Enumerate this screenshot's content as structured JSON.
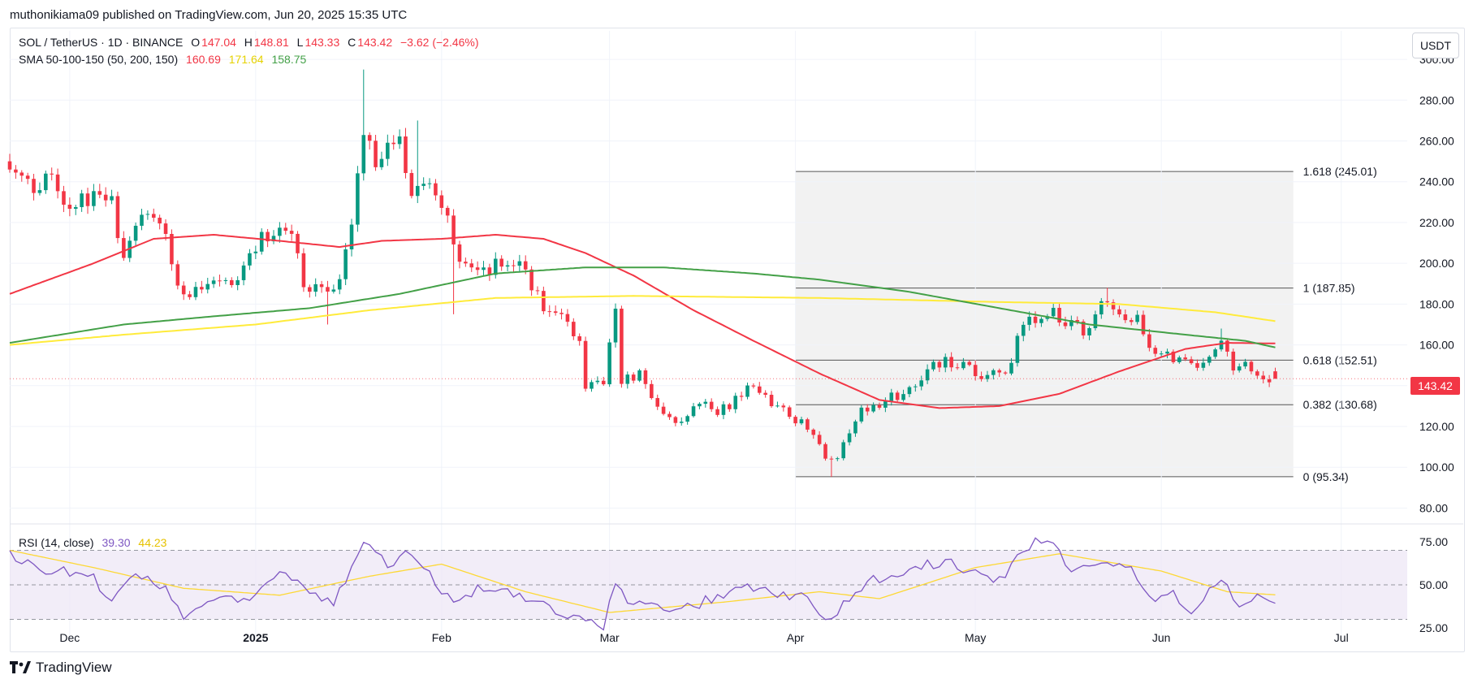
{
  "header": {
    "published": "muthonikiama09 published on TradingView.com, Jun 20, 2025 15:35 UTC"
  },
  "legend": {
    "symbol": "SOL / TetherUS · 1D · BINANCE",
    "ohlc": [
      {
        "label": "O",
        "value": "147.04"
      },
      {
        "label": "H",
        "value": "148.81"
      },
      {
        "label": "L",
        "value": "143.33"
      },
      {
        "label": "C",
        "value": "143.42"
      }
    ],
    "change": "−3.62 (−2.46%)",
    "sma_label": "SMA 50-100-150 (50, 200, 150)",
    "sma_values": [
      "160.69",
      "171.64",
      "158.75"
    ]
  },
  "unit_button": "USDT",
  "last_price_tag": "143.42",
  "rsi_legend": {
    "label": "RSI (14, close)",
    "values": [
      "39.30",
      "44.23"
    ]
  },
  "footer": {
    "logo_text": "TradingView"
  },
  "colors": {
    "up": "#089981",
    "down": "#f23645",
    "sma50": "#f23645",
    "sma200": "#ffeb3b",
    "sma150": "#43a047",
    "rsi": "#7e57c2",
    "rsi_ma": "#fdd835",
    "fib_zone": "#f2f2f2"
  },
  "chart_data": [
    {
      "type": "candlestick",
      "title": "SOL / TetherUS · 1D · BINANCE",
      "ylim": [
        75,
        306
      ],
      "yticks": [
        "80.00",
        "100.00",
        "120.00",
        "140.00",
        "160.00",
        "180.00",
        "200.00",
        "220.00",
        "240.00",
        "260.00",
        "280.00",
        "300.00"
      ],
      "ytick_values": [
        80,
        100,
        120,
        140,
        160,
        180,
        200,
        220,
        240,
        260,
        280,
        300
      ],
      "xaxis": {
        "start": "2024-11-21",
        "end": "2025-07-12"
      },
      "xticks": [
        {
          "label": "Dec",
          "date": "2024-12-01",
          "bold": false
        },
        {
          "label": "2025",
          "date": "2025-01-01",
          "bold": true
        },
        {
          "label": "Feb",
          "date": "2025-02-01",
          "bold": false
        },
        {
          "label": "Mar",
          "date": "2025-03-01",
          "bold": false
        },
        {
          "label": "Apr",
          "date": "2025-04-01",
          "bold": false
        },
        {
          "label": "May",
          "date": "2025-05-01",
          "bold": false
        },
        {
          "label": "Jun",
          "date": "2025-06-01",
          "bold": false
        },
        {
          "label": "Jul",
          "date": "2025-07-01",
          "bold": false
        }
      ],
      "close_anchors": [
        [
          "2024-11-21",
          250
        ],
        [
          "2024-11-24",
          238
        ],
        [
          "2024-11-28",
          240
        ],
        [
          "2024-12-02",
          228
        ],
        [
          "2024-12-05",
          234
        ],
        [
          "2024-12-08",
          229
        ],
        [
          "2024-12-10",
          205
        ],
        [
          "2024-12-13",
          220
        ],
        [
          "2024-12-16",
          220
        ],
        [
          "2024-12-18",
          200
        ],
        [
          "2024-12-20",
          183
        ],
        [
          "2024-12-23",
          190
        ],
        [
          "2024-12-26",
          192
        ],
        [
          "2024-12-29",
          190
        ],
        [
          "2025-01-02",
          212
        ],
        [
          "2025-01-05",
          218
        ],
        [
          "2025-01-07",
          215
        ],
        [
          "2025-01-09",
          190
        ],
        [
          "2025-01-12",
          187
        ],
        [
          "2025-01-14",
          185
        ],
        [
          "2025-01-16",
          205
        ],
        [
          "2025-01-18",
          240
        ],
        [
          "2025-01-19",
          265
        ],
        [
          "2025-01-21",
          245
        ],
        [
          "2025-01-23",
          255
        ],
        [
          "2025-01-25",
          258
        ],
        [
          "2025-01-27",
          238
        ],
        [
          "2025-01-30",
          235
        ],
        [
          "2025-02-01",
          225
        ],
        [
          "2025-02-03",
          212
        ],
        [
          "2025-02-05",
          198
        ],
        [
          "2025-02-08",
          198
        ],
        [
          "2025-02-11",
          200
        ],
        [
          "2025-02-14",
          198
        ],
        [
          "2025-02-18",
          178
        ],
        [
          "2025-02-21",
          172
        ],
        [
          "2025-02-24",
          162
        ],
        [
          "2025-02-25",
          138
        ],
        [
          "2025-02-28",
          140
        ],
        [
          "2025-03-02",
          178
        ],
        [
          "2025-03-03",
          142
        ],
        [
          "2025-03-06",
          145
        ],
        [
          "2025-03-09",
          128
        ],
        [
          "2025-03-12",
          123
        ],
        [
          "2025-03-16",
          130
        ],
        [
          "2025-03-20",
          128
        ],
        [
          "2025-03-24",
          140
        ],
        [
          "2025-03-27",
          135
        ],
        [
          "2025-03-31",
          125
        ],
        [
          "2025-04-03",
          119
        ],
        [
          "2025-04-06",
          105
        ],
        [
          "2025-04-08",
          106
        ],
        [
          "2025-04-11",
          125
        ],
        [
          "2025-04-14",
          130
        ],
        [
          "2025-04-18",
          135
        ],
        [
          "2025-04-21",
          140
        ],
        [
          "2025-04-24",
          150
        ],
        [
          "2025-04-27",
          152
        ],
        [
          "2025-04-30",
          147
        ],
        [
          "2025-05-03",
          145
        ],
        [
          "2025-05-06",
          145
        ],
        [
          "2025-05-08",
          162
        ],
        [
          "2025-05-10",
          172
        ],
        [
          "2025-05-13",
          178
        ],
        [
          "2025-05-16",
          170
        ],
        [
          "2025-05-19",
          168
        ],
        [
          "2025-05-22",
          178
        ],
        [
          "2025-05-25",
          175
        ],
        [
          "2025-05-28",
          175
        ],
        [
          "2025-05-30",
          158
        ],
        [
          "2025-06-02",
          155
        ],
        [
          "2025-06-05",
          152
        ],
        [
          "2025-06-06",
          148
        ],
        [
          "2025-06-09",
          155
        ],
        [
          "2025-06-11",
          165
        ],
        [
          "2025-06-13",
          148
        ],
        [
          "2025-06-16",
          150
        ],
        [
          "2025-06-18",
          146
        ],
        [
          "2025-06-20",
          143.42
        ]
      ],
      "spikes": [
        {
          "date": "2025-01-19",
          "high": 295
        },
        {
          "date": "2025-01-28",
          "high": 270
        },
        {
          "date": "2025-02-03",
          "low": 175
        },
        {
          "date": "2025-01-13",
          "low": 170
        },
        {
          "date": "2025-04-07",
          "low": 95.3
        },
        {
          "date": "2025-05-23",
          "high": 188
        },
        {
          "date": "2025-06-11",
          "high": 168
        }
      ],
      "last_candle": {
        "date": "2025-06-20",
        "open": 147.04,
        "high": 148.81,
        "low": 143.33,
        "close": 143.42
      },
      "sma_lines": [
        {
          "name": "SMA 50",
          "color": "#f23645",
          "points": [
            [
              "2024-11-21",
              185
            ],
            [
              "2024-12-05",
              200
            ],
            [
              "2024-12-15",
              212
            ],
            [
              "2024-12-25",
              214
            ],
            [
              "2025-01-05",
              211
            ],
            [
              "2025-01-15",
              208
            ],
            [
              "2025-01-22",
              211
            ],
            [
              "2025-02-01",
              212
            ],
            [
              "2025-02-10",
              214
            ],
            [
              "2025-02-18",
              212
            ],
            [
              "2025-02-25",
              205
            ],
            [
              "2025-03-05",
              194
            ],
            [
              "2025-03-15",
              177
            ],
            [
              "2025-03-25",
              162
            ],
            [
              "2025-04-05",
              146
            ],
            [
              "2025-04-15",
              133
            ],
            [
              "2025-04-25",
              129
            ],
            [
              "2025-05-05",
              130
            ],
            [
              "2025-05-15",
              136
            ],
            [
              "2025-05-25",
              147
            ],
            [
              "2025-06-05",
              158
            ],
            [
              "2025-06-12",
              161
            ],
            [
              "2025-06-20",
              160.69
            ]
          ]
        },
        {
          "name": "SMA 200",
          "color": "#ffeb3b",
          "points": [
            [
              "2024-11-21",
              160
            ],
            [
              "2024-12-10",
              165
            ],
            [
              "2025-01-01",
              170
            ],
            [
              "2025-01-20",
              177
            ],
            [
              "2025-02-10",
              183
            ],
            [
              "2025-03-05",
              184
            ],
            [
              "2025-04-05",
              183
            ],
            [
              "2025-05-05",
              181
            ],
            [
              "2025-05-25",
              180
            ],
            [
              "2025-06-10",
              176
            ],
            [
              "2025-06-20",
              171.64
            ]
          ]
        },
        {
          "name": "SMA 150",
          "color": "#43a047",
          "points": [
            [
              "2024-11-21",
              161
            ],
            [
              "2024-12-10",
              170
            ],
            [
              "2024-12-25",
              174
            ],
            [
              "2025-01-10",
              178
            ],
            [
              "2025-01-25",
              185
            ],
            [
              "2025-02-10",
              195
            ],
            [
              "2025-02-25",
              198
            ],
            [
              "2025-03-10",
              198
            ],
            [
              "2025-03-25",
              195
            ],
            [
              "2025-04-05",
              192
            ],
            [
              "2025-04-20",
              186
            ],
            [
              "2025-05-05",
              178
            ],
            [
              "2025-05-20",
              170
            ],
            [
              "2025-06-05",
              165
            ],
            [
              "2025-06-15",
              162
            ],
            [
              "2025-06-20",
              158.75
            ]
          ]
        }
      ],
      "fibonacci": {
        "from": "2025-04-01",
        "to": "2025-06-23",
        "levels": [
          {
            "label": "1.618 (245.01)",
            "value": 245.01
          },
          {
            "label": "1 (187.85)",
            "value": 187.85
          },
          {
            "label": "0.618 (152.51)",
            "value": 152.51
          },
          {
            "label": "0.382 (130.68)",
            "value": 130.68
          },
          {
            "label": "0 (95.34)",
            "value": 95.34
          }
        ]
      }
    },
    {
      "type": "line",
      "title": "RSI (14, close)",
      "ylim": [
        18,
        82
      ],
      "yticks": [
        "25.00",
        "50.00",
        "75.00"
      ],
      "ytick_values": [
        25,
        50,
        75
      ],
      "band": [
        30,
        70
      ],
      "rsi_anchors": [
        [
          "2024-11-21",
          68
        ],
        [
          "2024-11-25",
          60
        ],
        [
          "2024-11-30",
          58
        ],
        [
          "2024-12-05",
          54
        ],
        [
          "2024-12-08",
          40
        ],
        [
          "2024-12-12",
          55
        ],
        [
          "2024-12-17",
          48
        ],
        [
          "2024-12-20",
          32
        ],
        [
          "2024-12-25",
          42
        ],
        [
          "2024-12-30",
          40
        ],
        [
          "2025-01-03",
          52
        ],
        [
          "2025-01-06",
          58
        ],
        [
          "2025-01-10",
          45
        ],
        [
          "2025-01-14",
          40
        ],
        [
          "2025-01-17",
          58
        ],
        [
          "2025-01-19",
          74
        ],
        [
          "2025-01-23",
          62
        ],
        [
          "2025-01-26",
          68
        ],
        [
          "2025-01-30",
          55
        ],
        [
          "2025-02-03",
          40
        ],
        [
          "2025-02-07",
          48
        ],
        [
          "2025-02-12",
          45
        ],
        [
          "2025-02-18",
          38
        ],
        [
          "2025-02-22",
          30
        ],
        [
          "2025-02-26",
          28
        ],
        [
          "2025-02-28",
          25
        ],
        [
          "2025-03-02",
          52
        ],
        [
          "2025-03-04",
          38
        ],
        [
          "2025-03-09",
          40
        ],
        [
          "2025-03-12",
          34
        ],
        [
          "2025-03-18",
          42
        ],
        [
          "2025-03-24",
          50
        ],
        [
          "2025-03-31",
          42
        ],
        [
          "2025-04-03",
          44
        ],
        [
          "2025-04-06",
          30
        ],
        [
          "2025-04-09",
          38
        ],
        [
          "2025-04-13",
          52
        ],
        [
          "2025-04-18",
          55
        ],
        [
          "2025-04-23",
          62
        ],
        [
          "2025-04-27",
          62
        ],
        [
          "2025-05-02",
          55
        ],
        [
          "2025-05-06",
          52
        ],
        [
          "2025-05-08",
          70
        ],
        [
          "2025-05-11",
          75
        ],
        [
          "2025-05-13",
          76
        ],
        [
          "2025-05-17",
          60
        ],
        [
          "2025-05-20",
          58
        ],
        [
          "2025-05-23",
          65
        ],
        [
          "2025-05-27",
          60
        ],
        [
          "2025-05-30",
          42
        ],
        [
          "2025-06-03",
          44
        ],
        [
          "2025-06-06",
          34
        ],
        [
          "2025-06-09",
          48
        ],
        [
          "2025-06-11",
          52
        ],
        [
          "2025-06-14",
          40
        ],
        [
          "2025-06-17",
          45
        ],
        [
          "2025-06-20",
          39.3
        ]
      ],
      "rsi_ma_anchors": [
        [
          "2024-11-21",
          70
        ],
        [
          "2024-12-05",
          60
        ],
        [
          "2024-12-20",
          48
        ],
        [
          "2025-01-05",
          44
        ],
        [
          "2025-01-20",
          55
        ],
        [
          "2025-02-01",
          62
        ],
        [
          "2025-02-15",
          46
        ],
        [
          "2025-03-01",
          34
        ],
        [
          "2025-03-20",
          40
        ],
        [
          "2025-04-05",
          46
        ],
        [
          "2025-04-15",
          42
        ],
        [
          "2025-05-01",
          60
        ],
        [
          "2025-05-15",
          68
        ],
        [
          "2025-06-01",
          58
        ],
        [
          "2025-06-12",
          46
        ],
        [
          "2025-06-20",
          44.23
        ]
      ]
    }
  ]
}
